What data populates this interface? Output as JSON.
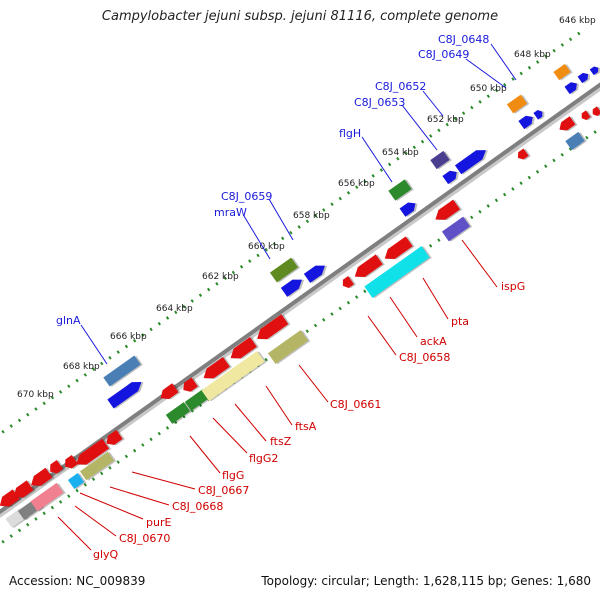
{
  "title": "Campylobacter jejuni subsp. jejuni 81116, complete genome",
  "accession": "Accession: NC_009839",
  "summary": "Topology: circular; Length: 1,628,115 bp; Genes: 1,680",
  "colors": {
    "label_forward": "#1a1adb",
    "label_reverse": "#d00000",
    "tick_dots": "#2a8a2a",
    "backbone": "#808080"
  },
  "scale_labels": [
    "646 kbp",
    "648 kbp",
    "650 kbp",
    "652 kbp",
    "654 kbp",
    "656 kbp",
    "658 kbp",
    "660 kbp",
    "662 kbp",
    "664 kbp",
    "666 kbp",
    "668 kbp",
    "670 kbp"
  ],
  "forward_gene_labels": [
    "C8J_0648",
    "C8J_0649",
    "C8J_0652",
    "C8J_0653",
    "flgH",
    "C8J_0659",
    "mraW",
    "glnA"
  ],
  "reverse_gene_labels": [
    "ispG",
    "pta",
    "ackA",
    "C8J_0658",
    "C8J_0661",
    "ftsA",
    "ftsZ",
    "flgG2",
    "flgG",
    "C8J_0667",
    "C8J_0668",
    "purE",
    "C8J_0670",
    "glyQ"
  ]
}
